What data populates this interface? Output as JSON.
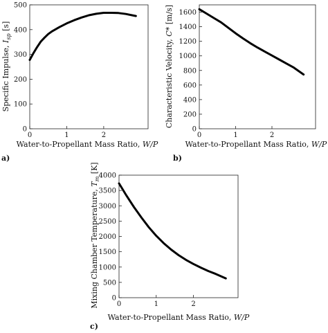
{
  "chart_data": [
    {
      "panel": "a)",
      "type": "line",
      "xlabel": "Water-to-Propellant Mass Ratio, W/P",
      "ylabel": "Specific Impulse, I_sp [s]",
      "xlim": [
        0,
        3.2
      ],
      "ylim": [
        0,
        500
      ],
      "xticks": [
        0,
        1,
        2
      ],
      "yticks": [
        0,
        100,
        200,
        300,
        400,
        500
      ],
      "series": [
        {
          "x": [
            0,
            0.1,
            0.2,
            0.3,
            0.4,
            0.5,
            0.6,
            0.8,
            1.0,
            1.2,
            1.4,
            1.6,
            1.8,
            2.0,
            2.2,
            2.4,
            2.6,
            2.8,
            2.87
          ],
          "y": [
            278,
            305,
            330,
            352,
            368,
            382,
            393,
            410,
            425,
            438,
            449,
            458,
            464,
            468,
            468,
            467,
            463,
            457,
            455
          ]
        }
      ]
    },
    {
      "panel": "b)",
      "type": "line",
      "xlabel": "Water-to-Propellant Mass Ratio, W/P",
      "ylabel": "Characteristic Velocity, C* [m/s]",
      "xlim": [
        0,
        3.2
      ],
      "ylim": [
        0,
        1700
      ],
      "xticks": [
        0,
        1,
        2
      ],
      "yticks": [
        0,
        200,
        400,
        600,
        800,
        1000,
        1200,
        1400,
        1600
      ],
      "series": [
        {
          "x": [
            0,
            0.2,
            0.4,
            0.6,
            0.8,
            1.0,
            1.2,
            1.4,
            1.6,
            1.8,
            2.0,
            2.2,
            2.4,
            2.6,
            2.87
          ],
          "y": [
            1640,
            1580,
            1520,
            1460,
            1385,
            1310,
            1240,
            1175,
            1115,
            1060,
            1005,
            950,
            895,
            840,
            745
          ]
        }
      ]
    },
    {
      "panel": "c)",
      "type": "line",
      "xlabel": "Water-to-Propellant Mass Ratio, W/P",
      "ylabel": "Mixing Chamber Temperature, T_m [K]",
      "xlim": [
        0,
        3.2
      ],
      "ylim": [
        0,
        4000
      ],
      "xticks": [
        0,
        1,
        2
      ],
      "yticks": [
        0,
        500,
        1000,
        1500,
        2000,
        2500,
        3000,
        3500,
        4000
      ],
      "series": [
        {
          "x": [
            0,
            0.2,
            0.4,
            0.6,
            0.8,
            1.0,
            1.2,
            1.4,
            1.6,
            1.8,
            2.0,
            2.2,
            2.4,
            2.6,
            2.87
          ],
          "y": [
            3730,
            3330,
            2960,
            2620,
            2300,
            2020,
            1780,
            1570,
            1390,
            1235,
            1100,
            980,
            870,
            775,
            630
          ]
        }
      ]
    }
  ]
}
